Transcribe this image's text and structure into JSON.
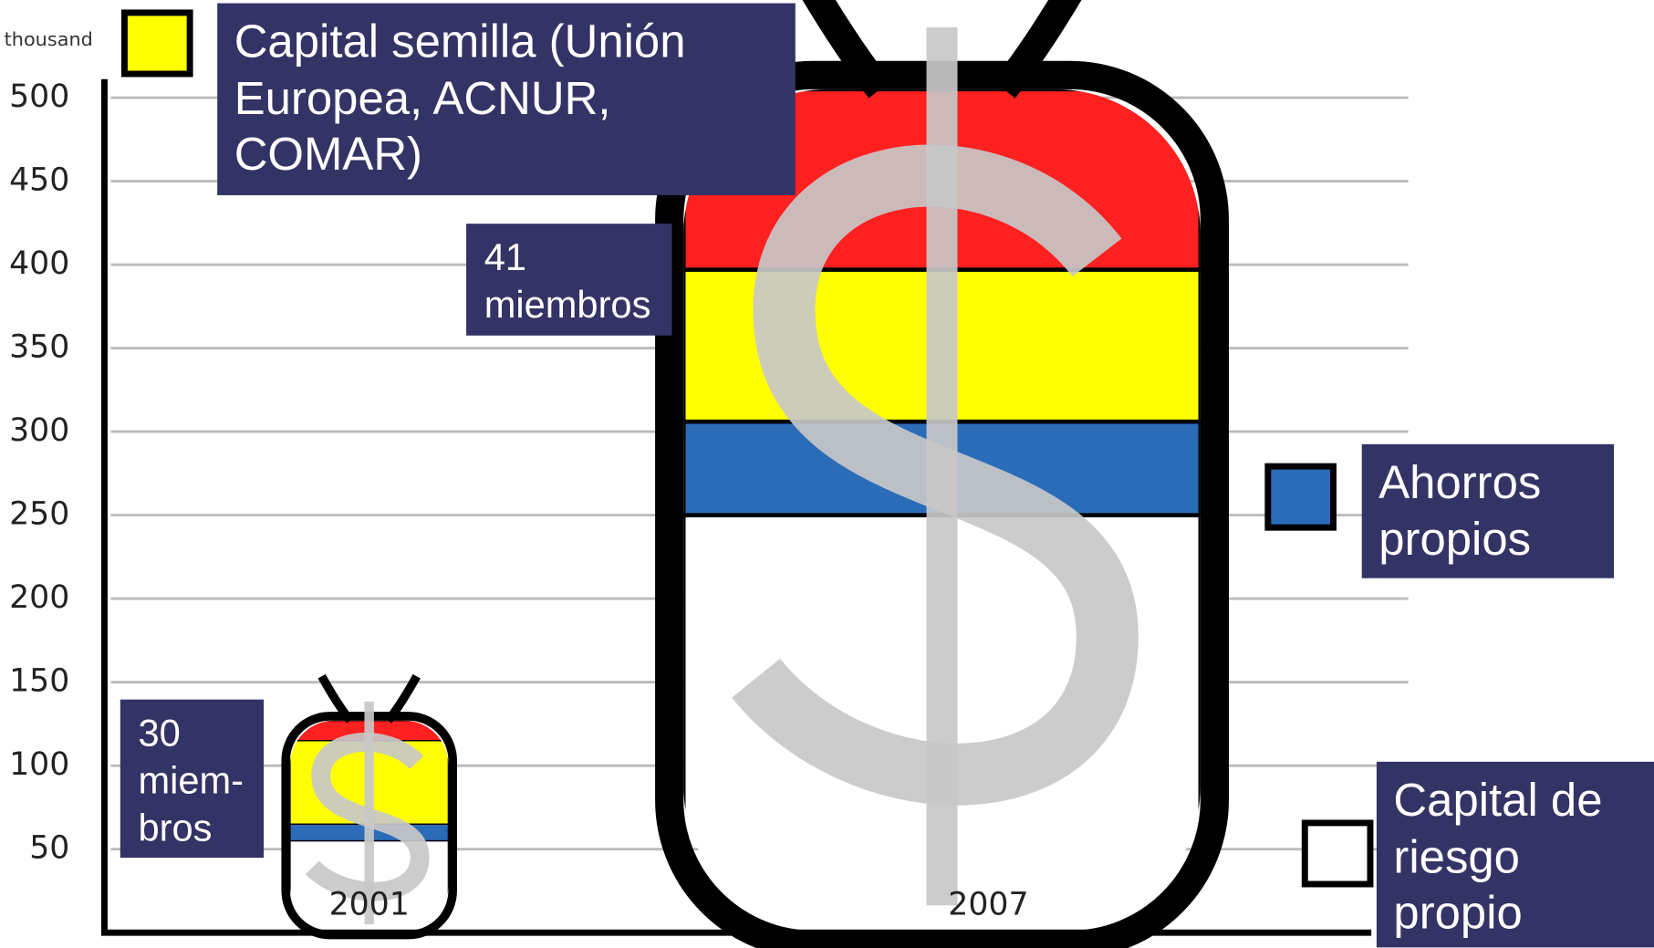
{
  "chart_data": {
    "type": "bag",
    "y_label": "thousand",
    "categories": [
      "2001",
      "2007"
    ],
    "series": [
      {
        "name": "Capital de riesgo propio",
        "color": "#ffffff",
        "values": [
          55,
          250
        ]
      },
      {
        "name": "Ahorros propios",
        "color": "#2b6cb8",
        "values": [
          10,
          56
        ]
      },
      {
        "name": "Capital semilla (Unión Europea, ACNUR, COMAR)",
        "color": "#ffff00",
        "values": [
          50,
          91
        ]
      },
      {
        "color": "#ff2020",
        "values": [
          12,
          108
        ]
      }
    ],
    "ylim": [
      0,
      500
    ],
    "yticks": [
      50,
      100,
      150,
      200,
      250,
      300,
      350,
      400,
      450,
      500
    ],
    "grid": true,
    "annotations": [
      {
        "lines": [
          "41",
          "miembros"
        ]
      },
      {
        "lines": [
          "30",
          "miem-",
          "bros"
        ]
      }
    ]
  }
}
